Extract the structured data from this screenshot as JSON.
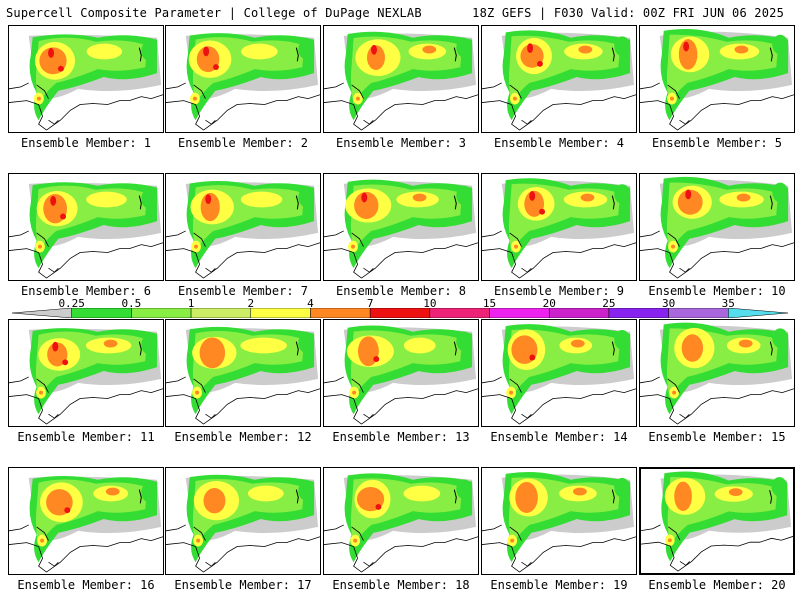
{
  "header": {
    "title_left": "Supercell Composite Parameter | College of DuPage NEXLAB",
    "title_right": "18Z GEFS | F030 Valid: 00Z FRI JUN 06 2025"
  },
  "legend": {
    "levels": [
      "0.25",
      "0.5",
      "1",
      "2",
      "4",
      "7",
      "10",
      "15",
      "20",
      "25",
      "30",
      "35"
    ],
    "colors": [
      "#cccccc",
      "#33dd33",
      "#88ee44",
      "#ccee66",
      "#ffff44",
      "#ff8822",
      "#ee1111",
      "#ee2277",
      "#ee22ee",
      "#cc22cc",
      "#8822ee",
      "#aa66dd",
      "#55ddee"
    ]
  },
  "members": [
    {
      "label": "Ensemble Member: 1"
    },
    {
      "label": "Ensemble Member: 2"
    },
    {
      "label": "Ensemble Member: 3"
    },
    {
      "label": "Ensemble Member: 4"
    },
    {
      "label": "Ensemble Member: 5"
    },
    {
      "label": "Ensemble Member: 6"
    },
    {
      "label": "Ensemble Member: 7"
    },
    {
      "label": "Ensemble Member: 8"
    },
    {
      "label": "Ensemble Member: 9"
    },
    {
      "label": "Ensemble Member: 10"
    },
    {
      "label": "Ensemble Member: 11"
    },
    {
      "label": "Ensemble Member: 12"
    },
    {
      "label": "Ensemble Member: 13"
    },
    {
      "label": "Ensemble Member: 14"
    },
    {
      "label": "Ensemble Member: 15"
    },
    {
      "label": "Ensemble Member: 16"
    },
    {
      "label": "Ensemble Member: 17"
    },
    {
      "label": "Ensemble Member: 18"
    },
    {
      "label": "Ensemble Member: 19"
    },
    {
      "label": "Ensemble Member: 20"
    }
  ]
}
